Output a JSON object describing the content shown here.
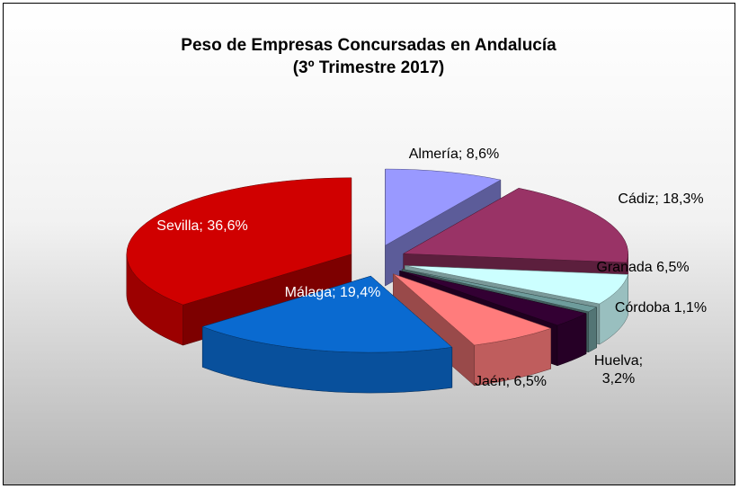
{
  "chart_data": {
    "type": "pie3d",
    "title": [
      "Peso de Empresas Concursadas en Andalucía",
      "(3º Trimestre 2017)"
    ],
    "values": [
      8.6,
      18.3,
      6.5,
      1.1,
      3.2,
      6.5,
      19.4,
      36.6
    ],
    "value_labels": [
      "Almería; 8,6%",
      "Cádiz; 18,3%",
      "Granada 6,5%",
      "Córdoba 1,1%",
      "Huelva;\n3,2%",
      "Jaén; 6,5%",
      "Málaga; 19,4%",
      "Sevilla; 36,6%"
    ],
    "colors": [
      "#9999ff",
      "#993366",
      "#ccffff",
      "#6e9c9c",
      "#330033",
      "#ff7c7c",
      "#0a6ad0",
      "#d00000"
    ]
  }
}
